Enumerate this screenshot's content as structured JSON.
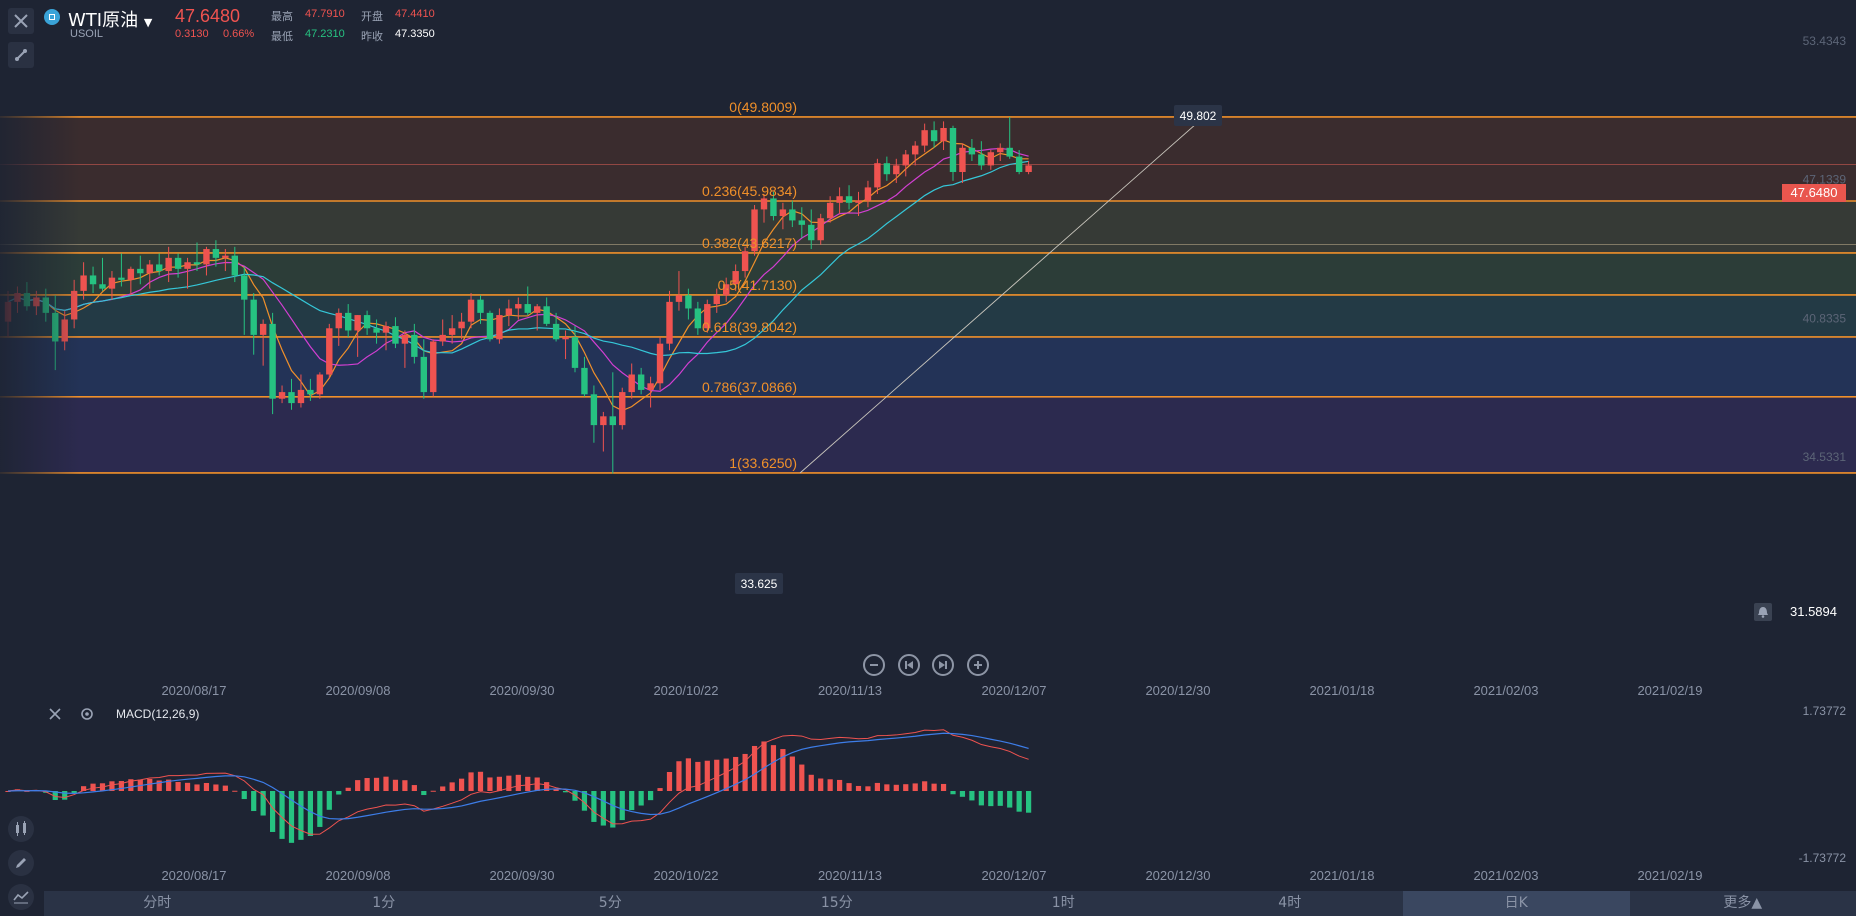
{
  "header": {
    "symbol_name": "WTI原油",
    "symbol_code": "USOIL",
    "last_price": "47.6480",
    "change": "0.3130",
    "change_pct": "0.66%",
    "high_label": "最高",
    "high": "47.7910",
    "open_label": "开盘",
    "open": "47.4410",
    "low_label": "最低",
    "low": "47.2310",
    "prev_close_label": "昨收",
    "prev_close": "47.3350"
  },
  "price_axis": {
    "ticks": [
      "53.4343",
      "47.1339",
      "40.8335",
      "34.5331"
    ],
    "current_tag": "47.6480",
    "alert_value": "31.5894"
  },
  "fib": {
    "levels": [
      {
        "label": "0(49.8009)",
        "value": 49.8009
      },
      {
        "label": "0.236(45.9834)",
        "value": 45.9834
      },
      {
        "label": "0.382(43.6217)",
        "value": 43.6217
      },
      {
        "label": "0.5(41.7130)",
        "value": 41.713
      },
      {
        "label": "0.618(39.8042)",
        "value": 39.8042
      },
      {
        "label": "0.786(37.0866)",
        "value": 37.0866
      },
      {
        "label": "1(33.6250)",
        "value": 33.625
      }
    ],
    "high_tag": "49.802",
    "low_tag": "33.625"
  },
  "date_axis": [
    "2020/08/17",
    "2020/09/08",
    "2020/09/30",
    "2020/10/22",
    "2020/11/13",
    "2020/12/07",
    "2020/12/30",
    "2021/01/18",
    "2021/02/03",
    "2021/02/19"
  ],
  "macd": {
    "title": "MACD(12,26,9)",
    "top_tick": "1.73772",
    "bottom_tick": "-1.73772"
  },
  "timeframes": [
    "分时",
    "1分",
    "5分",
    "15分",
    "1时",
    "4时",
    "日K",
    "更多▲"
  ],
  "active_timeframe": "日K",
  "colors": {
    "up": "#ef5350",
    "down": "#26c281",
    "fib": "#f0902a",
    "ma5": "#f0902a",
    "ma10": "#d23fd2",
    "ma20": "#35c7d8",
    "dif": "#ef5350",
    "dea": "#3d7de8"
  },
  "chart_data": {
    "type": "candlestick",
    "x_range": [
      "2020/08/03",
      "2020/12/31"
    ],
    "y_range": [
      31.5894,
      55.5
    ],
    "ohlc": [
      [
        40.5,
        41.9,
        39.8,
        41.4
      ],
      [
        41.4,
        42.1,
        40.9,
        41.8
      ],
      [
        41.8,
        42.3,
        41.0,
        41.2
      ],
      [
        41.2,
        41.9,
        40.8,
        41.6
      ],
      [
        41.6,
        42.0,
        40.5,
        40.9
      ],
      [
        40.9,
        41.7,
        38.3,
        39.6
      ],
      [
        39.6,
        41.0,
        39.2,
        40.6
      ],
      [
        40.6,
        42.4,
        40.2,
        41.9
      ],
      [
        41.9,
        43.2,
        41.5,
        42.6
      ],
      [
        42.6,
        43.0,
        41.8,
        42.2
      ],
      [
        42.2,
        43.4,
        41.9,
        42.0
      ],
      [
        42.0,
        42.8,
        41.5,
        42.5
      ],
      [
        42.5,
        43.6,
        42.1,
        42.4
      ],
      [
        42.4,
        43.0,
        41.7,
        42.9
      ],
      [
        42.9,
        43.5,
        42.2,
        42.7
      ],
      [
        42.7,
        43.3,
        42.0,
        43.1
      ],
      [
        43.1,
        43.6,
        42.6,
        42.8
      ],
      [
        42.8,
        43.9,
        42.3,
        43.4
      ],
      [
        43.4,
        43.6,
        42.5,
        42.9
      ],
      [
        42.9,
        43.4,
        42.0,
        43.2
      ],
      [
        43.2,
        44.1,
        42.8,
        43.1
      ],
      [
        43.1,
        43.9,
        42.6,
        43.8
      ],
      [
        43.8,
        44.2,
        43.0,
        43.4
      ],
      [
        43.4,
        43.8,
        42.8,
        43.5
      ],
      [
        43.5,
        43.9,
        42.3,
        42.6
      ],
      [
        42.6,
        43.0,
        39.9,
        41.5
      ],
      [
        41.5,
        41.8,
        39.0,
        39.9
      ],
      [
        39.9,
        40.6,
        38.5,
        40.4
      ],
      [
        40.4,
        40.9,
        36.3,
        37.0
      ],
      [
        37.0,
        37.6,
        36.8,
        37.3
      ],
      [
        37.3,
        37.9,
        36.5,
        36.8
      ],
      [
        36.8,
        38.1,
        36.6,
        37.4
      ],
      [
        37.4,
        37.9,
        36.9,
        37.2
      ],
      [
        37.2,
        38.2,
        37.0,
        38.1
      ],
      [
        38.1,
        40.4,
        37.9,
        40.2
      ],
      [
        40.2,
        41.1,
        39.4,
        40.9
      ],
      [
        40.9,
        41.3,
        39.8,
        40.1
      ],
      [
        40.1,
        40.8,
        38.9,
        40.8
      ],
      [
        40.8,
        41.0,
        39.9,
        40.2
      ],
      [
        40.2,
        40.6,
        39.5,
        40.0
      ],
      [
        40.0,
        40.5,
        39.2,
        40.3
      ],
      [
        40.3,
        40.7,
        39.3,
        39.5
      ],
      [
        39.5,
        40.1,
        38.4,
        39.9
      ],
      [
        39.9,
        40.4,
        38.6,
        38.9
      ],
      [
        38.9,
        39.7,
        37.0,
        37.3
      ],
      [
        37.3,
        39.7,
        37.1,
        39.6
      ],
      [
        39.6,
        40.6,
        39.4,
        39.9
      ],
      [
        39.9,
        40.8,
        39.5,
        40.2
      ],
      [
        40.2,
        40.9,
        39.7,
        40.5
      ],
      [
        40.5,
        41.8,
        40.2,
        41.5
      ],
      [
        41.5,
        41.7,
        40.4,
        40.9
      ],
      [
        40.9,
        41.0,
        39.6,
        39.7
      ],
      [
        39.7,
        41.1,
        39.5,
        40.8
      ],
      [
        40.8,
        41.5,
        40.3,
        41.1
      ],
      [
        41.1,
        41.6,
        40.6,
        41.3
      ],
      [
        41.3,
        42.1,
        40.8,
        40.9
      ],
      [
        40.9,
        41.3,
        40.1,
        41.2
      ],
      [
        41.2,
        41.6,
        40.3,
        40.4
      ],
      [
        40.4,
        40.9,
        39.6,
        39.7
      ],
      [
        39.7,
        40.1,
        38.8,
        39.8
      ],
      [
        39.8,
        40.3,
        38.2,
        38.4
      ],
      [
        38.4,
        38.9,
        37.1,
        37.2
      ],
      [
        37.2,
        37.6,
        35.0,
        35.8
      ],
      [
        35.8,
        36.4,
        34.6,
        36.2
      ],
      [
        36.2,
        38.2,
        33.6,
        35.8
      ],
      [
        35.8,
        37.5,
        35.6,
        37.3
      ],
      [
        37.3,
        38.6,
        37.0,
        38.1
      ],
      [
        38.1,
        38.4,
        37.2,
        37.4
      ],
      [
        37.4,
        38.0,
        36.6,
        37.7
      ],
      [
        37.7,
        39.8,
        37.4,
        39.5
      ],
      [
        39.5,
        41.9,
        39.2,
        41.4
      ],
      [
        41.4,
        42.8,
        41.0,
        41.7
      ],
      [
        41.7,
        42.0,
        40.6,
        41.1
      ],
      [
        41.1,
        41.4,
        39.9,
        40.2
      ],
      [
        40.2,
        41.5,
        40.0,
        41.3
      ],
      [
        41.3,
        42.0,
        40.9,
        41.7
      ],
      [
        41.7,
        42.5,
        41.4,
        42.2
      ],
      [
        42.2,
        43.1,
        41.9,
        42.8
      ],
      [
        42.8,
        43.9,
        42.5,
        43.7
      ],
      [
        43.7,
        45.8,
        43.5,
        45.6
      ],
      [
        45.6,
        46.3,
        45.0,
        46.1
      ],
      [
        46.1,
        46.4,
        45.1,
        45.3
      ],
      [
        45.3,
        45.9,
        44.7,
        45.6
      ],
      [
        45.6,
        46.0,
        44.8,
        45.1
      ],
      [
        45.1,
        45.7,
        44.3,
        44.9
      ],
      [
        44.9,
        45.6,
        43.8,
        44.2
      ],
      [
        44.2,
        45.4,
        44.0,
        45.2
      ],
      [
        45.2,
        46.2,
        45.0,
        45.9
      ],
      [
        45.9,
        46.6,
        45.4,
        46.2
      ],
      [
        46.2,
        46.7,
        45.6,
        45.9
      ],
      [
        45.9,
        46.4,
        45.3,
        46.0
      ],
      [
        46.0,
        46.9,
        45.7,
        46.6
      ],
      [
        46.6,
        47.9,
        46.3,
        47.7
      ],
      [
        47.7,
        48.0,
        46.9,
        47.2
      ],
      [
        47.2,
        47.9,
        46.8,
        47.6
      ],
      [
        47.6,
        48.3,
        47.1,
        48.1
      ],
      [
        48.1,
        48.7,
        47.6,
        48.5
      ],
      [
        48.5,
        49.5,
        48.2,
        49.2
      ],
      [
        49.2,
        49.6,
        48.4,
        48.7
      ],
      [
        48.7,
        49.6,
        48.3,
        49.3
      ],
      [
        49.3,
        49.4,
        46.9,
        47.3
      ],
      [
        47.3,
        48.6,
        46.8,
        48.4
      ],
      [
        48.4,
        48.8,
        47.8,
        48.1
      ],
      [
        48.1,
        48.7,
        47.4,
        47.6
      ],
      [
        47.6,
        48.3,
        47.4,
        48.2
      ],
      [
        48.2,
        48.6,
        47.8,
        48.4
      ],
      [
        48.4,
        49.8,
        47.9,
        48.0
      ],
      [
        48.0,
        48.3,
        47.2,
        47.3
      ],
      [
        47.3,
        47.8,
        47.2,
        47.6
      ]
    ]
  }
}
